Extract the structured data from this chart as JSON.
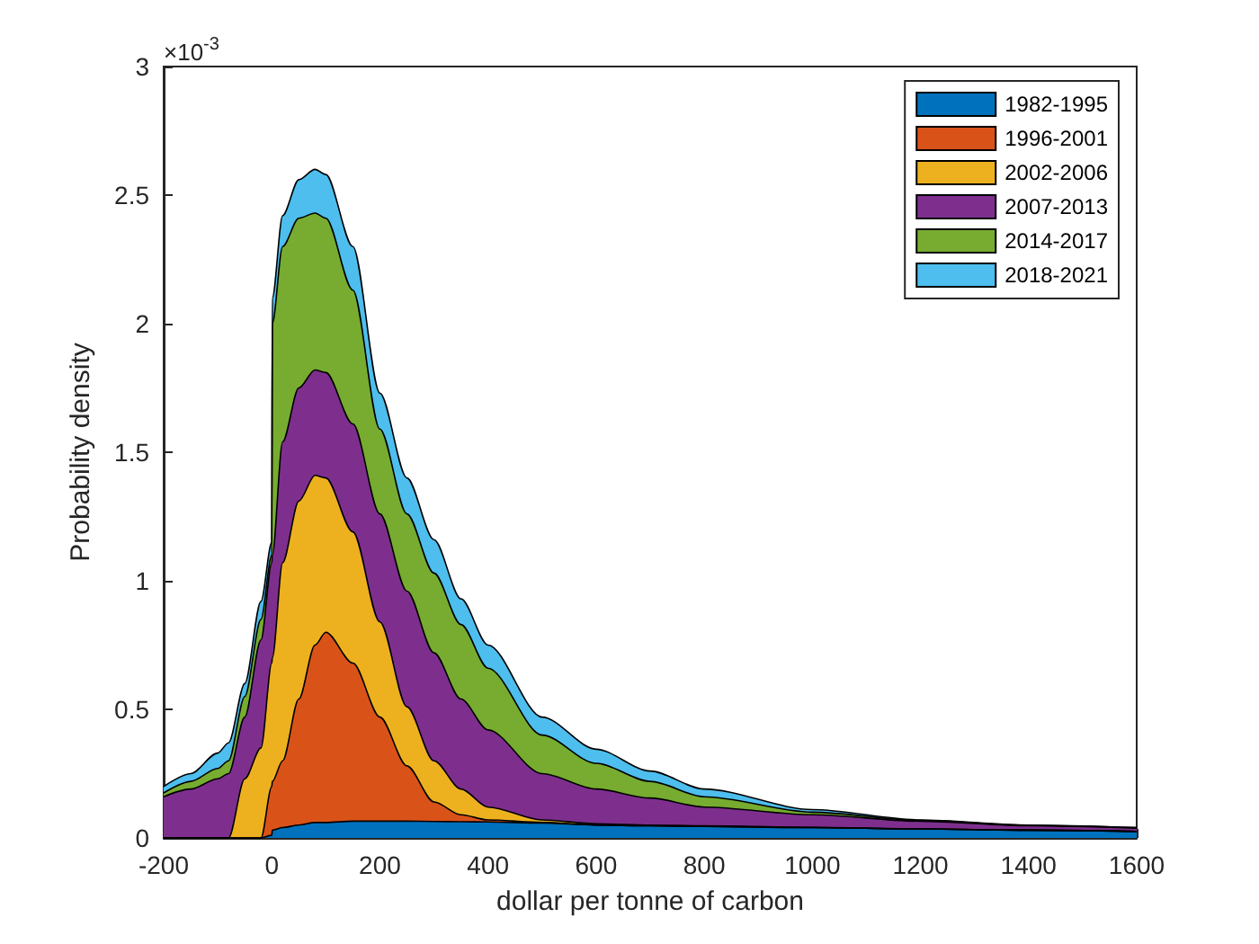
{
  "chart_data": {
    "type": "area",
    "stacked": true,
    "xlabel": "dollar per tonne of carbon",
    "ylabel": "Probability density",
    "annotations": [
      "×10$^{-3}$"
    ],
    "legend": "top right",
    "grid": false,
    "x": [
      -200,
      -150,
      -100,
      -80,
      -50,
      -20,
      0,
      1,
      20,
      50,
      80,
      100,
      150,
      200,
      250,
      300,
      350,
      400,
      500,
      600,
      700,
      800,
      1000,
      1200,
      1400,
      1600
    ],
    "xlim": [
      -200,
      1600
    ],
    "xticks": [
      -200,
      0,
      200,
      400,
      600,
      800,
      1000,
      1200,
      1400,
      1600
    ],
    "ylim": [
      0,
      3
    ],
    "yticks": [
      0,
      0.5,
      1,
      1.5,
      2,
      2.5,
      3
    ],
    "series": [
      {
        "name": "1982-1995",
        "color": "#0072bd",
        "values": [
          0,
          0,
          0,
          0,
          0,
          0,
          0.01,
          0.03,
          0.04,
          0.05,
          0.06,
          0.06,
          0.065,
          0.065,
          0.065,
          0.064,
          0.063,
          0.062,
          0.058,
          0.05,
          0.047,
          0.045,
          0.04,
          0.035,
          0.03,
          0.025
        ]
      },
      {
        "name": "1996-2001",
        "color": "#d95319",
        "values": [
          0,
          0,
          0,
          0,
          0,
          0,
          0.19,
          0.19,
          0.26,
          0.49,
          0.69,
          0.74,
          0.615,
          0.405,
          0.215,
          0.076,
          0.027,
          0.008,
          0.002,
          0,
          0,
          0,
          0,
          0,
          0,
          0
        ]
      },
      {
        "name": "2002-2006",
        "color": "#edb120",
        "values": [
          0,
          0,
          0,
          0,
          0.23,
          0.35,
          0.48,
          0.48,
          0.77,
          0.77,
          0.66,
          0.6,
          0.51,
          0.37,
          0.23,
          0.16,
          0.1,
          0.05,
          0.01,
          0.005,
          0.003,
          0.002,
          0.001,
          0,
          0,
          0
        ]
      },
      {
        "name": "2007-2013",
        "color": "#7e2f8e",
        "values": [
          0.16,
          0.19,
          0.23,
          0.25,
          0.24,
          0.42,
          0.39,
          0.4,
          0.47,
          0.44,
          0.41,
          0.41,
          0.42,
          0.42,
          0.45,
          0.42,
          0.35,
          0.3,
          0.18,
          0.135,
          0.105,
          0.073,
          0.049,
          0.03,
          0.017,
          0.013
        ]
      },
      {
        "name": "2014-2017",
        "color": "#77ac30",
        "values": [
          0.015,
          0.03,
          0.04,
          0.05,
          0.08,
          0.08,
          0.03,
          0.9,
          0.76,
          0.66,
          0.61,
          0.6,
          0.52,
          0.33,
          0.3,
          0.31,
          0.29,
          0.24,
          0.15,
          0.1,
          0.065,
          0.04,
          0.01,
          0.003,
          0.002,
          0.002
        ]
      },
      {
        "name": "2018-2021",
        "color": "#4dbeee",
        "values": [
          0.025,
          0.03,
          0.06,
          0.07,
          0.05,
          0.07,
          0.05,
          0.1,
          0.12,
          0.15,
          0.17,
          0.17,
          0.17,
          0.14,
          0.14,
          0.13,
          0.1,
          0.09,
          0.07,
          0.055,
          0.04,
          0.03,
          0.01,
          0.002,
          0.001,
          0
        ]
      }
    ]
  }
}
